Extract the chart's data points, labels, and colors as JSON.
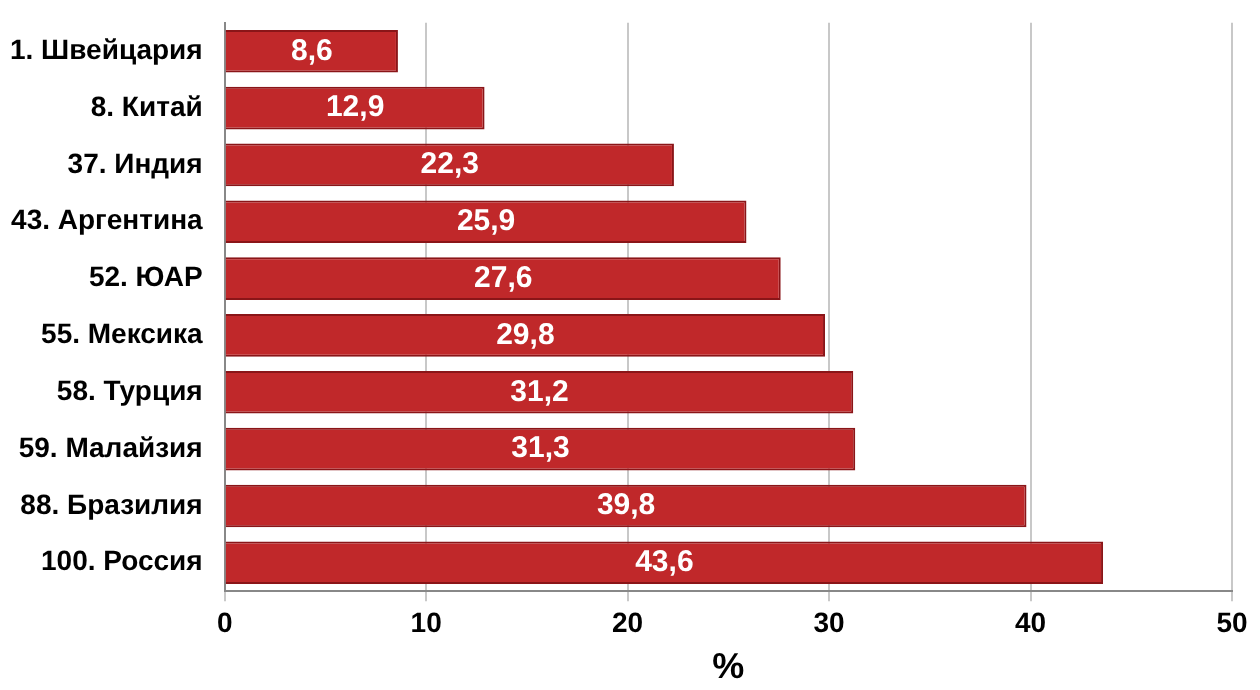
{
  "chart_data": {
    "type": "bar",
    "orientation": "horizontal",
    "xlabel": "%",
    "categories": [
      "1. Швейцария",
      "8. Китай",
      "37. Индия",
      "43. Аргентина",
      "52. ЮАР",
      "55. Мексика",
      "58. Турция",
      "59. Малайзия",
      "88. Бразилия",
      "100. Россия"
    ],
    "values": [
      8.6,
      12.9,
      22.3,
      25.9,
      27.6,
      29.8,
      31.2,
      31.3,
      39.8,
      43.6
    ],
    "value_labels": [
      "8,6",
      "12,9",
      "22,3",
      "25,9",
      "27,6",
      "29,8",
      "31,2",
      "31,3",
      "39,8",
      "43,6"
    ],
    "color": "#c0282a",
    "xlim": [
      0,
      50
    ],
    "xticks": [
      0,
      10,
      20,
      30,
      40,
      50
    ],
    "grid": "x"
  }
}
